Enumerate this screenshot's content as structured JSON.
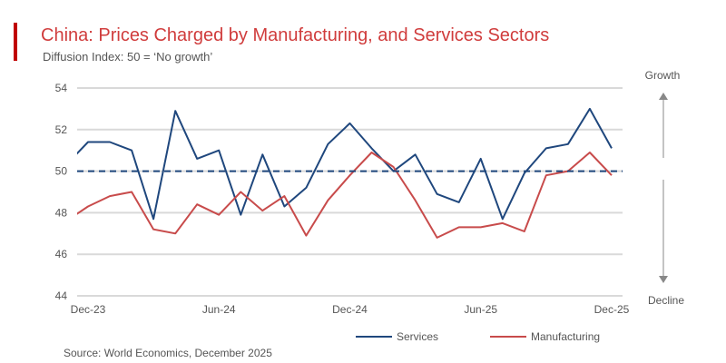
{
  "header": {
    "title": "China: Prices Charged by Manufacturing, and Services Sectors",
    "subtitle": "Diffusion Index: 50 = ‘No growth’"
  },
  "source": "Source: World Economics, December 2025",
  "side_labels": {
    "top": "Growth",
    "bottom": "Decline"
  },
  "colors": {
    "services": "#1f477d",
    "manufacturing": "#c84b4b",
    "reference": "#1f477d",
    "title": "#d03c3c"
  },
  "chart_data": {
    "type": "line",
    "title": "China: Prices Charged by Manufacturing, and Services Sectors",
    "x": [
      "Nov-23",
      "Dec-23",
      "Jan-24",
      "Feb-24",
      "Mar-24",
      "Apr-24",
      "May-24",
      "Jun-24",
      "Jul-24",
      "Aug-24",
      "Sep-24",
      "Oct-24",
      "Nov-24",
      "Dec-24",
      "Jan-25",
      "Feb-25",
      "Mar-25",
      "Apr-25",
      "May-25",
      "Jun-25",
      "Jul-25",
      "Aug-25",
      "Sep-25",
      "Oct-25",
      "Nov-25",
      "Dec-25"
    ],
    "x_tick_labels": [
      "Dec-23",
      "Jun-24",
      "Dec-24",
      "Jun-25",
      "Dec-25"
    ],
    "y_ticks": [
      44,
      46,
      48,
      50,
      52,
      54
    ],
    "ylim": [
      44,
      54
    ],
    "reference_line": 50,
    "grid": true,
    "legend": "bottom",
    "series": [
      {
        "name": "Services",
        "values": [
          50.3,
          51.4,
          51.4,
          51.0,
          47.7,
          52.9,
          50.6,
          51.0,
          47.9,
          50.8,
          48.3,
          49.2,
          51.3,
          52.3,
          51.1,
          50.0,
          50.8,
          48.9,
          48.5,
          50.6,
          47.7,
          49.9,
          51.1,
          51.3,
          53.0,
          51.1
        ]
      },
      {
        "name": "Manufacturing",
        "values": [
          47.6,
          48.3,
          48.8,
          49.0,
          47.2,
          47.0,
          48.4,
          47.9,
          49.0,
          48.1,
          48.8,
          46.9,
          48.6,
          49.8,
          50.9,
          50.2,
          48.6,
          46.8,
          47.3,
          47.3,
          47.5,
          47.1,
          49.8,
          50.0,
          50.9,
          49.8
        ]
      }
    ]
  }
}
